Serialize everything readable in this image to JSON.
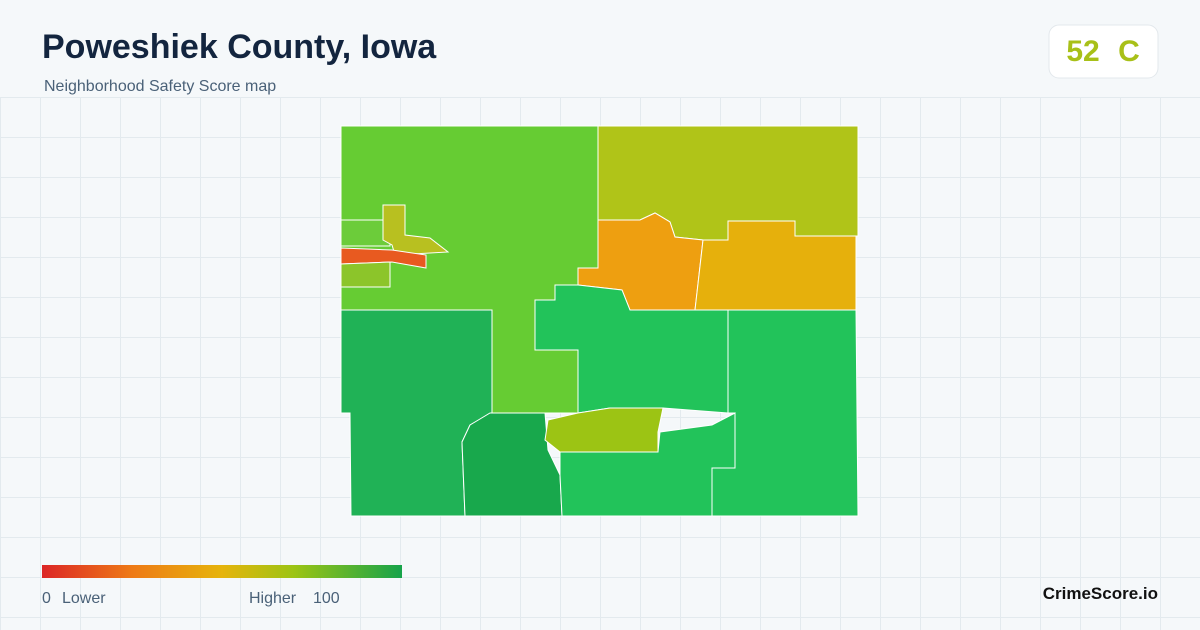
{
  "header": {
    "title": "Poweshiek County, Iowa",
    "subtitle": "Neighborhood Safety Score map"
  },
  "badge": {
    "score": "52",
    "grade": "C"
  },
  "legend": {
    "min": "0",
    "min_label": "Lower",
    "max_label": "Higher",
    "max": "100"
  },
  "footer": {
    "brand": "CrimeScore.io"
  }
}
